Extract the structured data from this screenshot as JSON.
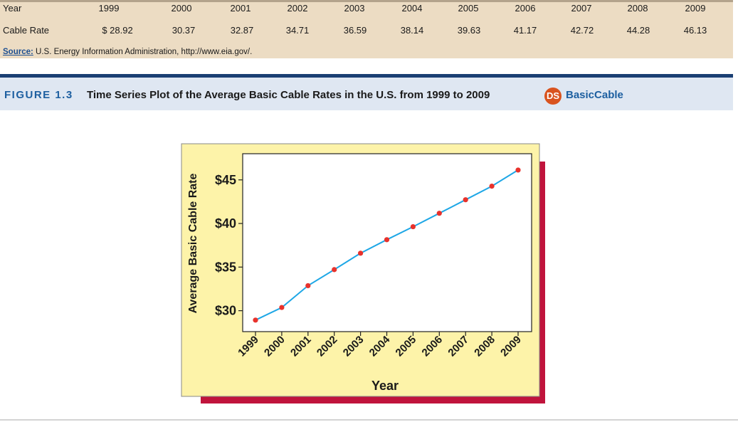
{
  "table": {
    "row_year": {
      "label": "Year",
      "values": [
        "1999",
        "2000",
        "2001",
        "2002",
        "2003",
        "2004",
        "2005",
        "2006",
        "2007",
        "2008",
        "2009"
      ]
    },
    "row_rate": {
      "label": "Cable Rate",
      "values": [
        "$ 28.92",
        "30.37",
        "32.87",
        "34.71",
        "36.59",
        "38.14",
        "39.63",
        "41.17",
        "42.72",
        "44.28",
        "46.13"
      ]
    },
    "source_label": "Source:",
    "source_text": " U.S. Energy Information Administration, http://www.eia.gov/."
  },
  "caption": {
    "figure_label": "FIGURE 1.3",
    "title": "Time Series Plot of the Average Basic Cable Rates in the U.S. from 1999 to 2009",
    "badge": "DS",
    "dataset": "BasicCable"
  },
  "colors": {
    "line": "#1ea7e6",
    "marker": "#e8322c",
    "panel": "#fdf3a9",
    "shadow": "#c0143c"
  },
  "chart_data": {
    "type": "line",
    "title": "",
    "xlabel": "Year",
    "ylabel": "Average Basic Cable Rate",
    "x": [
      1999,
      2000,
      2001,
      2002,
      2003,
      2004,
      2005,
      2006,
      2007,
      2008,
      2009
    ],
    "x_tick_labels": [
      "1999",
      "2000",
      "2001",
      "2002",
      "2003",
      "2004",
      "2005",
      "2006",
      "2007",
      "2008",
      "2009"
    ],
    "series": [
      {
        "name": "Average Basic Cable Rate",
        "values": [
          28.92,
          30.37,
          32.87,
          34.71,
          36.59,
          38.14,
          39.63,
          41.17,
          42.72,
          44.28,
          46.13
        ]
      }
    ],
    "y_ticks": [
      30,
      35,
      40,
      45
    ],
    "y_tick_labels": [
      "$30",
      "$35",
      "$40",
      "$45"
    ],
    "ylim": [
      27.6,
      48.0
    ],
    "grid": false,
    "legend": "none"
  }
}
